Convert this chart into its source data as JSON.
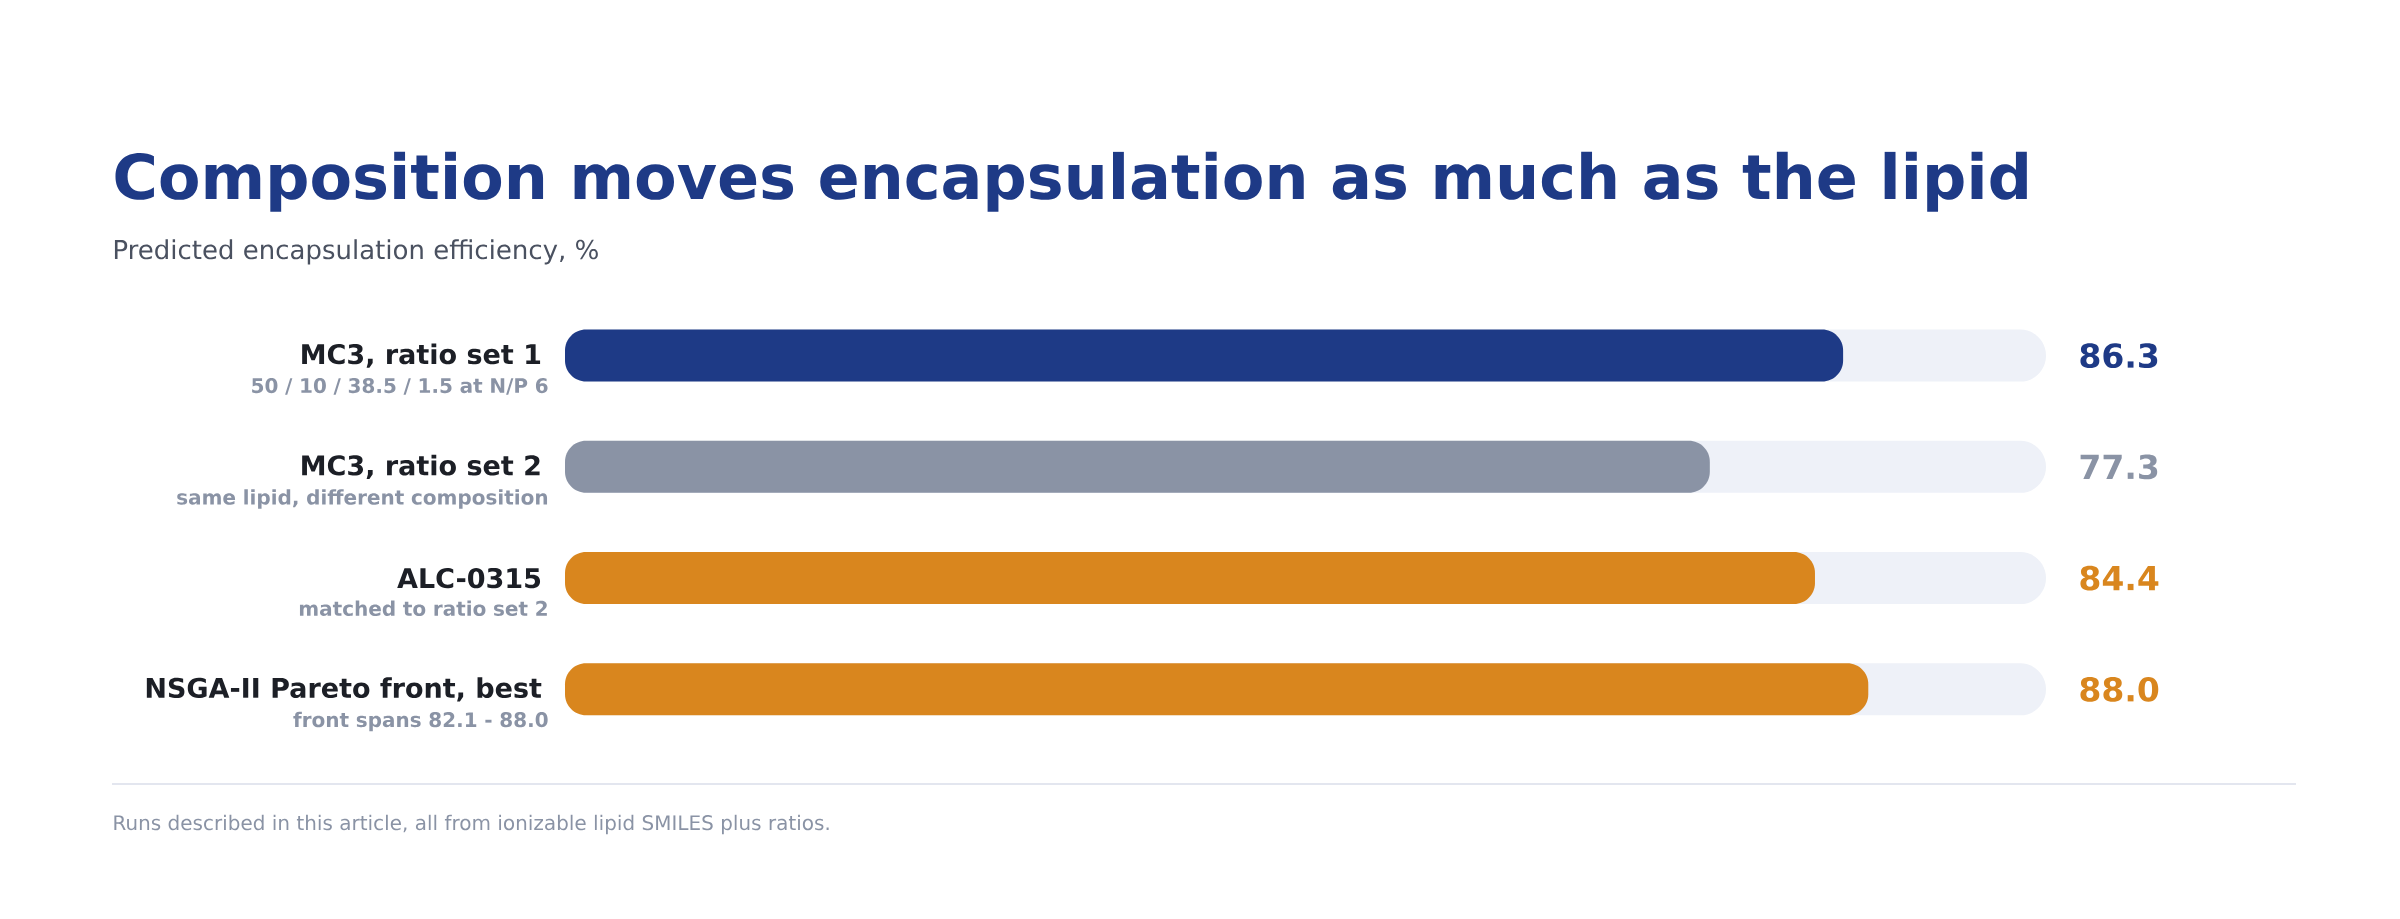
{
  "chart_data": {
    "type": "bar",
    "orientation": "horizontal",
    "title": "Composition moves encapsulation as much as the lipid",
    "subtitle": "Predicted encapsulation efficiency, %",
    "categories": [
      "MC3, ratio set 1",
      "MC3, ratio set 2",
      "ALC-0315",
      "NSGA-II Pareto front, best"
    ],
    "values": [
      86.3,
      77.3,
      84.4,
      88.0
    ],
    "value_labels": [
      "86.3",
      "77.3",
      "84.4",
      "88.0"
    ],
    "colors": [
      "#1e3a86",
      "#8a93a5",
      "#d9861e",
      "#d9861e"
    ],
    "xlim": [
      0,
      100
    ],
    "tick_labels": "y",
    "annotations": [
      "50 / 10 / 38.5 / 1.5 at N/P 6",
      "same lipid, different composition",
      "matched to ratio set 2",
      "front spans 82.1 - 88.0",
      "Runs described in this article, all from ionizable lipid SMILES plus ratios."
    ]
  }
}
